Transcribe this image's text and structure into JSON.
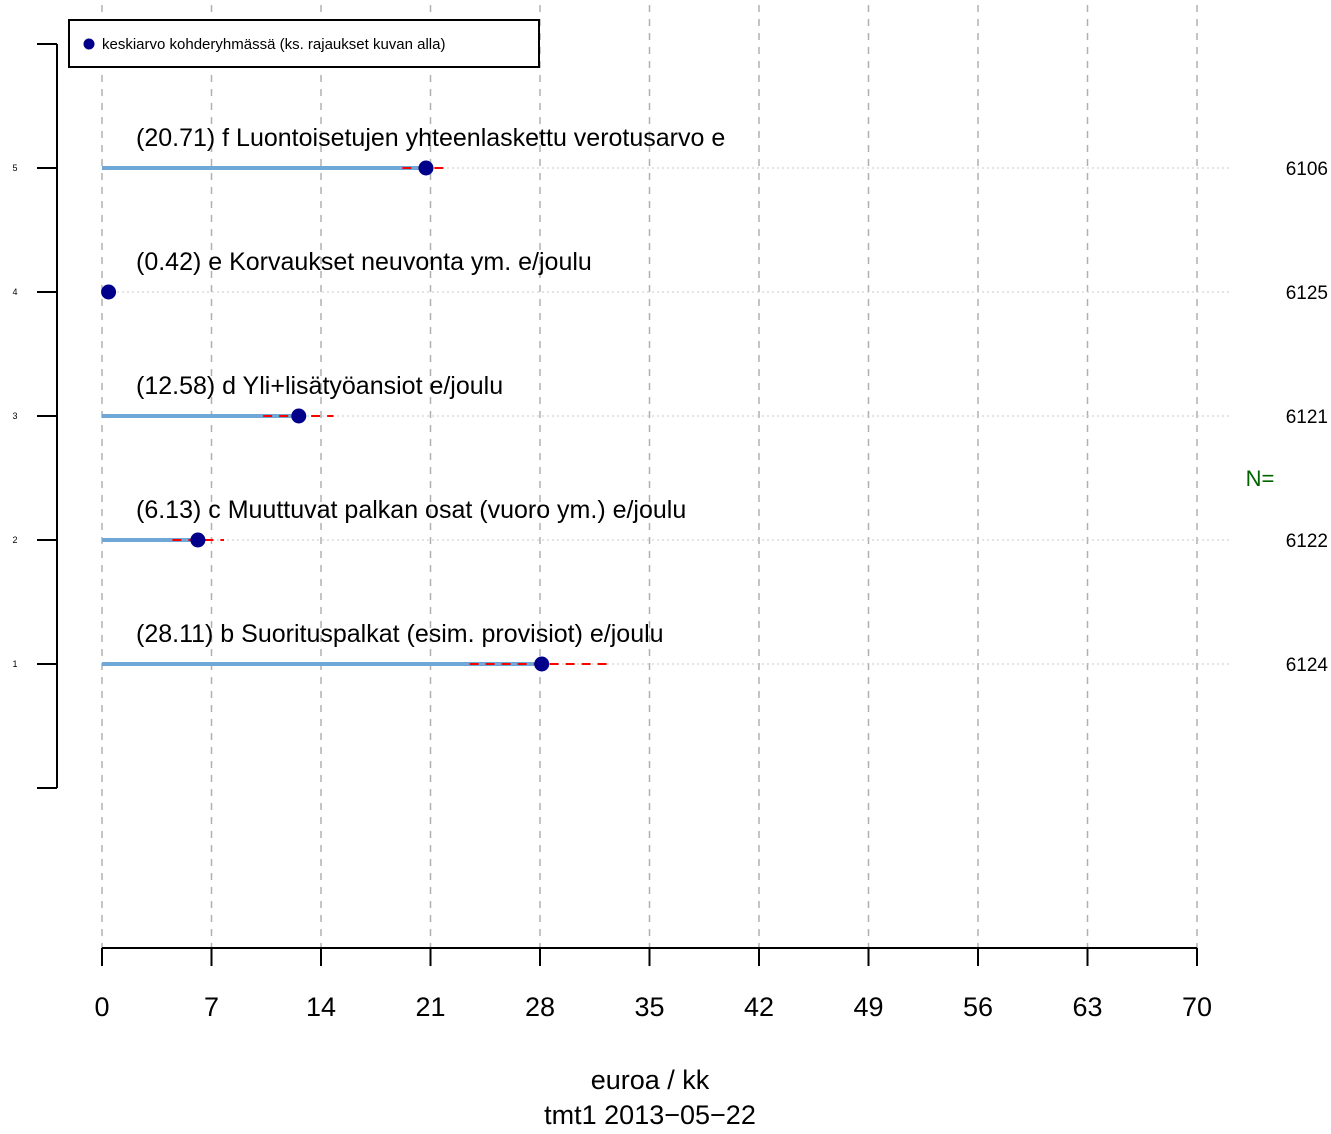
{
  "chart_data": {
    "type": "dot",
    "xlabel": "euroa / kk",
    "caption": "tmt1 2013−05−22",
    "legend": {
      "label": "keskiarvo kohderyhmässä (ks. rajaukset kuvan alla)",
      "position": "top-left"
    },
    "n_label": "N=",
    "xlim": [
      0,
      70
    ],
    "x_ticks": [
      "0",
      "7",
      "14",
      "21",
      "28",
      "35",
      "42",
      "49",
      "56",
      "63",
      "70"
    ],
    "y_ticks": [
      "1",
      "2",
      "3",
      "4",
      "5"
    ],
    "grid": "vertical dashed",
    "colors": {
      "bar": "#6fa8d6",
      "point": "#00008b",
      "ci": "#ff0000",
      "n_label": "#006400",
      "grid": "#b0b0b0"
    },
    "items": [
      {
        "y": 1,
        "label": "(28.11) b Suorituspalkat (esim. provisiot) e/joulu",
        "value": 28.11,
        "ci": [
          23.5,
          32.3
        ],
        "n": "6124"
      },
      {
        "y": 2,
        "label": "(6.13) c Muuttuvat palkan osat (vuoro ym.) e/joulu",
        "value": 6.13,
        "ci": [
          4.5,
          7.8
        ],
        "n": "6122"
      },
      {
        "y": 3,
        "label": "(12.58) d Yli+lisätyöansiot e/joulu",
        "value": 12.58,
        "ci": [
          10.3,
          14.8
        ],
        "n": "6121"
      },
      {
        "y": 4,
        "label": "(0.42) e Korvaukset neuvonta ym. e/joulu",
        "value": 0.42,
        "ci": [
          0.2,
          0.7
        ],
        "n": "6125"
      },
      {
        "y": 5,
        "label": "(20.71) f Luontoisetujen yhteenlaskettu verotusarvo e",
        "value": 20.71,
        "ci": [
          19.2,
          22.2
        ],
        "n": "6106"
      }
    ]
  }
}
